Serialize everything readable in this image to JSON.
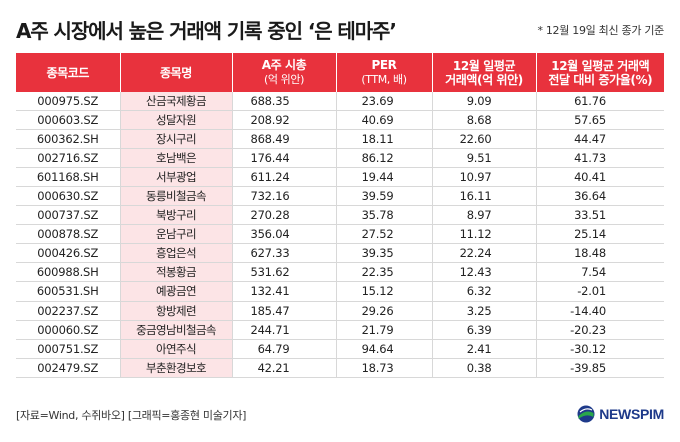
{
  "title": "A주 시장에서 높은 거래액 기록 중인 ‘은 테마주’",
  "note": "* 12월 19일 최신 종가 기준",
  "headers": [
    {
      "main": "종목코드",
      "sub": ""
    },
    {
      "main": "종목명",
      "sub": ""
    },
    {
      "main": "A주 시총",
      "sub": "(억 위안)"
    },
    {
      "main": "PER",
      "sub": "(TTM, 배)"
    },
    {
      "main": "12월 일평균",
      "sub": "거래액(억 위안)"
    },
    {
      "main": "12월 일평균 거래액",
      "sub": "전달 대비 증가율(%)"
    }
  ],
  "rows": [
    {
      "code": "000975.SZ",
      "name": "산금국제황금",
      "cap": "688.35",
      "per": "23.69",
      "vol": "9.09",
      "growth": "61.76"
    },
    {
      "code": "000603.SZ",
      "name": "성달자원",
      "cap": "208.92",
      "per": "40.69",
      "vol": "8.68",
      "growth": "57.65"
    },
    {
      "code": "600362.SH",
      "name": "장시구리",
      "cap": "868.49",
      "per": "18.11",
      "vol": "22.60",
      "growth": "44.47"
    },
    {
      "code": "002716.SZ",
      "name": "호남백은",
      "cap": "176.44",
      "per": "86.12",
      "vol": "9.51",
      "growth": "41.73"
    },
    {
      "code": "601168.SH",
      "name": "서부광업",
      "cap": "611.24",
      "per": "19.44",
      "vol": "10.97",
      "growth": "40.41"
    },
    {
      "code": "000630.SZ",
      "name": "동릉비철금속",
      "cap": "732.16",
      "per": "39.59",
      "vol": "16.11",
      "growth": "36.64"
    },
    {
      "code": "000737.SZ",
      "name": "북방구리",
      "cap": "270.28",
      "per": "35.78",
      "vol": "8.97",
      "growth": "33.51"
    },
    {
      "code": "000878.SZ",
      "name": "운남구리",
      "cap": "356.04",
      "per": "27.52",
      "vol": "11.12",
      "growth": "25.14"
    },
    {
      "code": "000426.SZ",
      "name": "흥업은석",
      "cap": "627.33",
      "per": "39.35",
      "vol": "22.24",
      "growth": "18.48"
    },
    {
      "code": "600988.SH",
      "name": "적봉황금",
      "cap": "531.62",
      "per": "22.35",
      "vol": "12.43",
      "growth": "7.54"
    },
    {
      "code": "600531.SH",
      "name": "예광금연",
      "cap": "132.41",
      "per": "15.12",
      "vol": "6.32",
      "growth": "-2.01"
    },
    {
      "code": "002237.SZ",
      "name": "항방제련",
      "cap": "185.47",
      "per": "29.26",
      "vol": "3.25",
      "growth": "-14.40"
    },
    {
      "code": "000060.SZ",
      "name": "중금영남비철금속",
      "cap": "244.71",
      "per": "21.79",
      "vol": "6.39",
      "growth": "-20.23"
    },
    {
      "code": "000751.SZ",
      "name": "아연주식",
      "cap": "64.79",
      "per": "94.64",
      "vol": "2.41",
      "growth": "-30.12"
    },
    {
      "code": "002479.SZ",
      "name": "부춘환경보호",
      "cap": "42.21",
      "per": "18.73",
      "vol": "0.38",
      "growth": "-39.85"
    }
  ],
  "footer": "[자료=Wind, 수쥐바오] [그래픽=홍종현 미술기자]",
  "logo": {
    "text": "NEWSPIM",
    "icon": "newspim-logo-icon",
    "colors": {
      "blue": "#1e3a8a",
      "green": "#2aa84a"
    }
  },
  "colors": {
    "header": "#e8323d",
    "name_cell": "#fce4e6"
  }
}
